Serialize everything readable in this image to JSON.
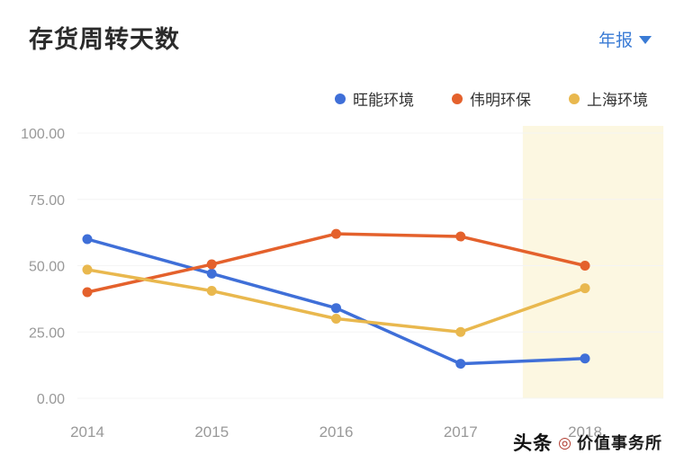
{
  "header": {
    "title": "存货周转天数",
    "period_label": "年报",
    "accent_color": "#3a7bd5"
  },
  "watermark": {
    "brand": "头条",
    "logo_glyph": "◎",
    "name": "价值事务所"
  },
  "chart_data": {
    "type": "line",
    "title": "存货周转天数",
    "x": [
      2014,
      2015,
      2016,
      2017,
      2018
    ],
    "series": [
      {
        "name": "旺能环境",
        "color": "#3f6fd8",
        "values": [
          60.0,
          47.0,
          34.0,
          13.0,
          15.0
        ]
      },
      {
        "name": "伟明环保",
        "color": "#e4612c",
        "values": [
          40.0,
          50.5,
          62.0,
          61.0,
          50.0
        ]
      },
      {
        "name": "上海环境",
        "color": "#e9b84e",
        "values": [
          48.5,
          40.5,
          30.0,
          25.0,
          41.5
        ]
      }
    ],
    "ylim": [
      0,
      100
    ],
    "yticks": [
      0,
      25,
      50,
      75,
      100
    ],
    "ytick_labels": [
      "0.00",
      "25.00",
      "50.00",
      "75.00",
      "100.00"
    ],
    "xtick_labels": [
      "2014",
      "2015",
      "2016",
      "2017",
      "2018"
    ],
    "grid": "horizontal-faint",
    "legend_position": "top-right",
    "highlight_band": {
      "x_start": 2017.5,
      "x_end": 2018.63,
      "color": "#fcf7e1"
    }
  }
}
